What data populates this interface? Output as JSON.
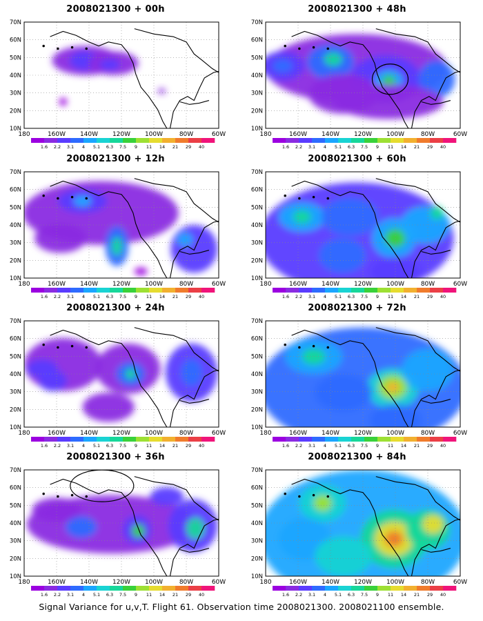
{
  "footer_caption": "Signal Variance for u,v,T. Flight 61. Observation time 2008021300. 2008021100 ensemble.",
  "lat_labels": [
    "70N",
    "60N",
    "50N",
    "40N",
    "30N",
    "20N",
    "10N"
  ],
  "lon_labels": [
    "180",
    "160W",
    "140W",
    "120W",
    "100W",
    "80W",
    "60W"
  ],
  "colorbar": {
    "labels": [
      "1.6",
      "2.2",
      "3.1",
      "4",
      "5.1",
      "6.3",
      "7.5",
      "9",
      "11",
      "14",
      "21",
      "29",
      "40"
    ],
    "colors": [
      "#9b00e0",
      "#8a2be2",
      "#5a3cff",
      "#2e6bff",
      "#1aa6ff",
      "#19d3d3",
      "#17d79a",
      "#39d13a",
      "#9de033",
      "#e6dc2f",
      "#f2b02f",
      "#f07b2c",
      "#eb3f46",
      "#f0147a"
    ]
  },
  "panels": [
    {
      "title": "2008021300 + 00h",
      "ellipse": null
    },
    {
      "title": "2008021300 + 48h",
      "ellipse": "lower-center"
    },
    {
      "title": "2008021300 + 12h",
      "ellipse": null
    },
    {
      "title": "2008021300 + 60h",
      "ellipse": null
    },
    {
      "title": "2008021300 + 24h",
      "ellipse": null
    },
    {
      "title": "2008021300 + 72h",
      "ellipse": null
    },
    {
      "title": "2008021300 + 36h",
      "ellipse": "upper-left"
    },
    {
      "title": "2008021300 + 84h",
      "ellipse": null
    }
  ]
}
